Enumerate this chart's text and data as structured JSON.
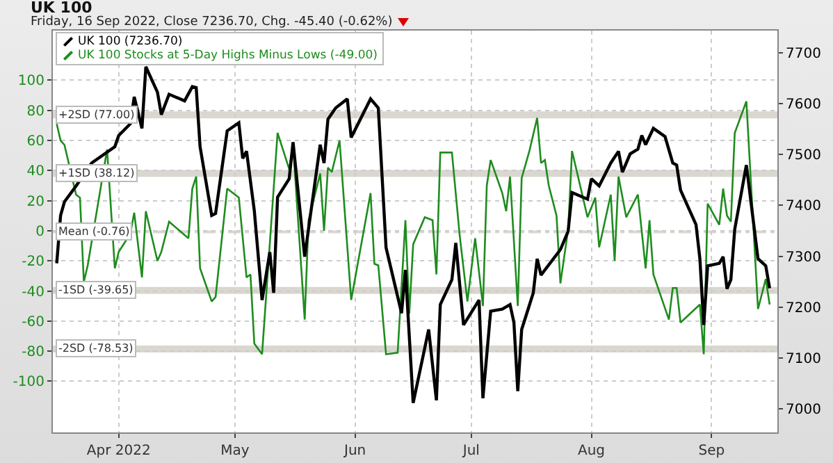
{
  "chart_data": {
    "type": "line",
    "title": "UK 100",
    "subtitle": "Friday, 16 Sep 2022, Close 7236.70, Chg. -45.40 (-0.62%)",
    "xlim": [
      "2022-03-15",
      "2022-09-18"
    ],
    "xticks": [
      {
        "value": "2022-04-01",
        "label": "Apr 2022"
      },
      {
        "value": "2022-05-01",
        "label": "May"
      },
      {
        "value": "2022-06-01",
        "label": "Jun"
      },
      {
        "value": "2022-07-01",
        "label": "Jul"
      },
      {
        "value": "2022-08-01",
        "label": "Aug"
      },
      {
        "value": "2022-09-01",
        "label": "Sep"
      }
    ],
    "ylim": [
      -134,
      133
    ],
    "yticks": [
      -100,
      -80,
      -60,
      -40,
      -20,
      0,
      20,
      40,
      60,
      80,
      100
    ],
    "y2lim": [
      6954,
      7743
    ],
    "y2ticks": [
      7000,
      7100,
      7200,
      7300,
      7400,
      7500,
      7600,
      7700
    ],
    "grid": true,
    "legend": "top left",
    "line_style": "solid",
    "marker": "none",
    "ref_lines": [
      {
        "axis": "y",
        "value": 77,
        "label": "+2SD (77.00)",
        "color": "#d9d7cf",
        "line_style": "solid"
      },
      {
        "axis": "y",
        "value": 38.12,
        "label": "+1SD (38.12)",
        "color": "#d9d7cf",
        "line_style": "solid"
      },
      {
        "axis": "y",
        "value": -0.76,
        "label": "Mean (-0.76)",
        "color": "#d9d7cf",
        "line_style": "dashed"
      },
      {
        "axis": "y",
        "value": -39.65,
        "label": "-1SD (-39.65)",
        "color": "#d9d7cf",
        "line_style": "solid"
      },
      {
        "axis": "y",
        "value": -78.53,
        "label": "-2SD (-78.53)",
        "color": "#d9d7cf",
        "line_style": "solid"
      }
    ],
    "series": [
      {
        "name": "UK 100 (7236.70)",
        "color": "#000000",
        "axis": "y2",
        "x": [
          "2022-03-16",
          "2022-03-17",
          "2022-03-18",
          "2022-03-21",
          "2022-03-25",
          "2022-03-31",
          "2022-04-01",
          "2022-04-04",
          "2022-04-05",
          "2022-04-07",
          "2022-04-08",
          "2022-04-11",
          "2022-04-12",
          "2022-04-14",
          "2022-04-18",
          "2022-04-20",
          "2022-04-21",
          "2022-04-22",
          "2022-04-25",
          "2022-04-26",
          "2022-04-29",
          "2022-05-02",
          "2022-05-03",
          "2022-05-04",
          "2022-05-06",
          "2022-05-08",
          "2022-05-10",
          "2022-05-11",
          "2022-05-12",
          "2022-05-15",
          "2022-05-16",
          "2022-05-19",
          "2022-05-23",
          "2022-05-24",
          "2022-05-25",
          "2022-05-27",
          "2022-05-30",
          "2022-05-31",
          "2022-06-05",
          "2022-06-07",
          "2022-06-09",
          "2022-06-13",
          "2022-06-14",
          "2022-06-16",
          "2022-06-20",
          "2022-06-22",
          "2022-06-23",
          "2022-06-26",
          "2022-06-27",
          "2022-06-29",
          "2022-07-03",
          "2022-07-04",
          "2022-07-06",
          "2022-07-09",
          "2022-07-11",
          "2022-07-12",
          "2022-07-13",
          "2022-07-14",
          "2022-07-17",
          "2022-07-18",
          "2022-07-19",
          "2022-07-24",
          "2022-07-26",
          "2022-07-27",
          "2022-07-31",
          "2022-08-01",
          "2022-08-03",
          "2022-08-06",
          "2022-08-08",
          "2022-08-09",
          "2022-08-11",
          "2022-08-13",
          "2022-08-14",
          "2022-08-15",
          "2022-08-17",
          "2022-08-20",
          "2022-08-22",
          "2022-08-23",
          "2022-08-24",
          "2022-08-28",
          "2022-08-29",
          "2022-08-30",
          "2022-08-31",
          "2022-09-03",
          "2022-09-04",
          "2022-09-05",
          "2022-09-06",
          "2022-09-07",
          "2022-09-10",
          "2022-09-13",
          "2022-09-15",
          "2022-09-16"
        ],
        "values": [
          7286,
          7380,
          7407,
          7438,
          7483,
          7515,
          7537,
          7560,
          7613,
          7551,
          7672,
          7622,
          7578,
          7618,
          7605,
          7633,
          7631,
          7515,
          7380,
          7384,
          7546,
          7562,
          7492,
          7506,
          7389,
          7214,
          7308,
          7228,
          7416,
          7452,
          7524,
          7299,
          7519,
          7483,
          7569,
          7591,
          7609,
          7533,
          7609,
          7591,
          7317,
          7188,
          7273,
          7012,
          7156,
          7017,
          7205,
          7254,
          7326,
          7165,
          7214,
          7021,
          7192,
          7196,
          7205,
          7170,
          7035,
          7156,
          7228,
          7295,
          7263,
          7313,
          7349,
          7425,
          7412,
          7452,
          7438,
          7483,
          7506,
          7465,
          7501,
          7510,
          7537,
          7519,
          7551,
          7535,
          7483,
          7479,
          7430,
          7362,
          7295,
          7165,
          7281,
          7286,
          7299,
          7236,
          7254,
          7353,
          7479,
          7295,
          7281,
          7237
        ]
      },
      {
        "name": "UK 100 Stocks at 5-Day Highs Minus Lows (-49.00)",
        "color": "#1e8c1e",
        "x": [
          "2022-03-16",
          "2022-03-17",
          "2022-03-18",
          "2022-03-21",
          "2022-03-22",
          "2022-03-23",
          "2022-03-24",
          "2022-03-29",
          "2022-03-31",
          "2022-04-01",
          "2022-04-04",
          "2022-04-05",
          "2022-04-07",
          "2022-04-08",
          "2022-04-11",
          "2022-04-12",
          "2022-04-14",
          "2022-04-19",
          "2022-04-20",
          "2022-04-21",
          "2022-04-22",
          "2022-04-25",
          "2022-04-26",
          "2022-04-29",
          "2022-05-02",
          "2022-05-04",
          "2022-05-05",
          "2022-05-06",
          "2022-05-08",
          "2022-05-12",
          "2022-05-15",
          "2022-05-16",
          "2022-05-19",
          "2022-05-20",
          "2022-05-23",
          "2022-05-24",
          "2022-05-25",
          "2022-05-26",
          "2022-05-28",
          "2022-05-31",
          "2022-06-05",
          "2022-06-06",
          "2022-06-07",
          "2022-06-09",
          "2022-06-12",
          "2022-06-14",
          "2022-06-15",
          "2022-06-16",
          "2022-06-19",
          "2022-06-21",
          "2022-06-22",
          "2022-06-23",
          "2022-06-26",
          "2022-06-28",
          "2022-06-30",
          "2022-07-01",
          "2022-07-02",
          "2022-07-04",
          "2022-07-05",
          "2022-07-06",
          "2022-07-09",
          "2022-07-10",
          "2022-07-11",
          "2022-07-13",
          "2022-07-14",
          "2022-07-16",
          "2022-07-18",
          "2022-07-19",
          "2022-07-20",
          "2022-07-21",
          "2022-07-23",
          "2022-07-24",
          "2022-07-26",
          "2022-07-27",
          "2022-07-31",
          "2022-08-02",
          "2022-08-03",
          "2022-08-06",
          "2022-08-07",
          "2022-08-08",
          "2022-08-10",
          "2022-08-13",
          "2022-08-15",
          "2022-08-16",
          "2022-08-17",
          "2022-08-21",
          "2022-08-22",
          "2022-08-23",
          "2022-08-24",
          "2022-08-29",
          "2022-08-30",
          "2022-08-31",
          "2022-09-03",
          "2022-09-04",
          "2022-09-05",
          "2022-09-06",
          "2022-09-07",
          "2022-09-10",
          "2022-09-13",
          "2022-09-15",
          "2022-09-16"
        ],
        "values": [
          71,
          60,
          57,
          24,
          22,
          -34,
          -23,
          54,
          -25,
          -14,
          -2,
          12,
          -31,
          13,
          -20,
          -14,
          6,
          -5,
          28,
          36,
          -25,
          -47,
          -44,
          28,
          22,
          -31,
          -29,
          -75,
          -82,
          65,
          41,
          57,
          -59,
          7,
          38,
          0,
          42,
          39,
          60,
          -46,
          25,
          -22,
          -23,
          -82,
          -81,
          7,
          -55,
          -9,
          9,
          7,
          -29,
          52,
          52,
          -3,
          -47,
          -26,
          -5,
          -50,
          30,
          47,
          25,
          13,
          36,
          -50,
          35,
          53,
          75,
          45,
          47,
          30,
          10,
          -35,
          1,
          53,
          9,
          22,
          -11,
          24,
          -20,
          36,
          9,
          24,
          -25,
          7,
          -29,
          -59,
          -38,
          -38,
          -61,
          -49,
          -82,
          18,
          4,
          28,
          10,
          6,
          65,
          86,
          -52,
          -32,
          -49
        ]
      }
    ]
  }
}
